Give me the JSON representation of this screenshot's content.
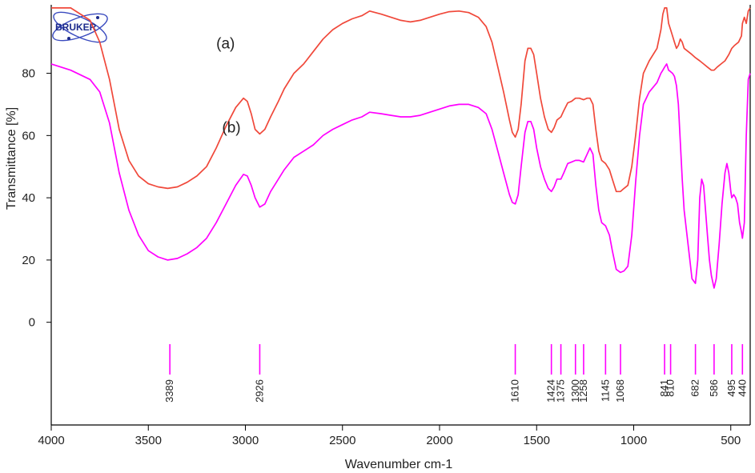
{
  "chart_data": {
    "type": "line",
    "logo": "BRUKER",
    "xlabel": "Wavenumber cm-1",
    "ylabel": "Transmittance [%]",
    "xlim": [
      4000,
      400
    ],
    "x_reversed": true,
    "ylim": [
      -33,
      102
    ],
    "x_ticks": [
      4000,
      3500,
      3000,
      2500,
      2000,
      1500,
      1000,
      500
    ],
    "y_ticks": [
      0,
      20,
      40,
      60,
      80
    ],
    "grid": false,
    "colors": {
      "a": "#f0483a",
      "b": "#ff00ff",
      "peaks": "#ff00ff"
    },
    "series": [
      {
        "name": "(a)",
        "color": "#f0483a",
        "points": [
          [
            4000,
            101
          ],
          [
            3900,
            101
          ],
          [
            3800,
            97
          ],
          [
            3750,
            90
          ],
          [
            3700,
            78
          ],
          [
            3650,
            62
          ],
          [
            3600,
            52
          ],
          [
            3550,
            47
          ],
          [
            3500,
            44.5
          ],
          [
            3450,
            43.5
          ],
          [
            3400,
            43
          ],
          [
            3350,
            43.5
          ],
          [
            3300,
            45
          ],
          [
            3250,
            47
          ],
          [
            3200,
            50
          ],
          [
            3150,
            56
          ],
          [
            3100,
            63
          ],
          [
            3050,
            69
          ],
          [
            3010,
            72
          ],
          [
            2990,
            71
          ],
          [
            2970,
            67
          ],
          [
            2950,
            62
          ],
          [
            2926,
            60.5
          ],
          [
            2900,
            62
          ],
          [
            2870,
            66
          ],
          [
            2830,
            71
          ],
          [
            2800,
            75
          ],
          [
            2750,
            80
          ],
          [
            2700,
            83
          ],
          [
            2650,
            87
          ],
          [
            2600,
            91
          ],
          [
            2550,
            94
          ],
          [
            2500,
            96
          ],
          [
            2450,
            97.5
          ],
          [
            2400,
            98.5
          ],
          [
            2360,
            100
          ],
          [
            2300,
            99
          ],
          [
            2250,
            98
          ],
          [
            2200,
            97
          ],
          [
            2150,
            96.5
          ],
          [
            2100,
            97
          ],
          [
            2050,
            98
          ],
          [
            2000,
            99
          ],
          [
            1950,
            99.8
          ],
          [
            1900,
            100
          ],
          [
            1850,
            99.5
          ],
          [
            1800,
            98
          ],
          [
            1760,
            95
          ],
          [
            1730,
            90
          ],
          [
            1700,
            82
          ],
          [
            1670,
            74
          ],
          [
            1640,
            65
          ],
          [
            1625,
            61
          ],
          [
            1610,
            59.5
          ],
          [
            1595,
            62
          ],
          [
            1580,
            70
          ],
          [
            1560,
            84
          ],
          [
            1545,
            88
          ],
          [
            1530,
            88
          ],
          [
            1515,
            86
          ],
          [
            1500,
            80
          ],
          [
            1480,
            72
          ],
          [
            1460,
            66
          ],
          [
            1440,
            62
          ],
          [
            1424,
            61
          ],
          [
            1410,
            62.5
          ],
          [
            1395,
            65
          ],
          [
            1375,
            66
          ],
          [
            1360,
            68
          ],
          [
            1340,
            70.5
          ],
          [
            1320,
            71
          ],
          [
            1300,
            72
          ],
          [
            1280,
            72
          ],
          [
            1258,
            71.5
          ],
          [
            1240,
            72
          ],
          [
            1225,
            72
          ],
          [
            1210,
            70
          ],
          [
            1195,
            62
          ],
          [
            1180,
            55
          ],
          [
            1165,
            52
          ],
          [
            1145,
            51
          ],
          [
            1125,
            49
          ],
          [
            1110,
            46
          ],
          [
            1090,
            42
          ],
          [
            1068,
            42
          ],
          [
            1050,
            43
          ],
          [
            1030,
            44
          ],
          [
            1010,
            50
          ],
          [
            990,
            60
          ],
          [
            970,
            72
          ],
          [
            950,
            80
          ],
          [
            920,
            84
          ],
          [
            880,
            88
          ],
          [
            860,
            94
          ],
          [
            850,
            99
          ],
          [
            841,
            101
          ],
          [
            830,
            101
          ],
          [
            820,
            96
          ],
          [
            810,
            94
          ],
          [
            800,
            92
          ],
          [
            790,
            90
          ],
          [
            780,
            88
          ],
          [
            770,
            89
          ],
          [
            760,
            91
          ],
          [
            750,
            90
          ],
          [
            740,
            88
          ],
          [
            720,
            87
          ],
          [
            700,
            86
          ],
          [
            682,
            85
          ],
          [
            660,
            84
          ],
          [
            640,
            83
          ],
          [
            620,
            82
          ],
          [
            600,
            81
          ],
          [
            586,
            81
          ],
          [
            570,
            82
          ],
          [
            550,
            83
          ],
          [
            530,
            84
          ],
          [
            510,
            86
          ],
          [
            495,
            88
          ],
          [
            480,
            89
          ],
          [
            460,
            90
          ],
          [
            445,
            92
          ],
          [
            440,
            96
          ],
          [
            430,
            98
          ],
          [
            420,
            96
          ],
          [
            410,
            100
          ],
          [
            400,
            101
          ]
        ]
      },
      {
        "name": "(b)",
        "color": "#ff00ff",
        "points": [
          [
            4000,
            83
          ],
          [
            3900,
            81
          ],
          [
            3800,
            78
          ],
          [
            3750,
            74
          ],
          [
            3700,
            64
          ],
          [
            3650,
            48
          ],
          [
            3600,
            36
          ],
          [
            3550,
            28
          ],
          [
            3500,
            23
          ],
          [
            3450,
            21
          ],
          [
            3400,
            20
          ],
          [
            3350,
            20.5
          ],
          [
            3300,
            22
          ],
          [
            3250,
            24
          ],
          [
            3200,
            27
          ],
          [
            3150,
            32
          ],
          [
            3100,
            38
          ],
          [
            3050,
            44
          ],
          [
            3010,
            47.5
          ],
          [
            2990,
            47
          ],
          [
            2970,
            44
          ],
          [
            2950,
            40
          ],
          [
            2926,
            37
          ],
          [
            2900,
            38
          ],
          [
            2870,
            42
          ],
          [
            2830,
            46
          ],
          [
            2800,
            49
          ],
          [
            2750,
            53
          ],
          [
            2700,
            55
          ],
          [
            2650,
            57
          ],
          [
            2600,
            60
          ],
          [
            2550,
            62
          ],
          [
            2500,
            63.5
          ],
          [
            2450,
            65
          ],
          [
            2400,
            66
          ],
          [
            2360,
            67.5
          ],
          [
            2300,
            67
          ],
          [
            2250,
            66.5
          ],
          [
            2200,
            66
          ],
          [
            2150,
            66
          ],
          [
            2100,
            66.5
          ],
          [
            2050,
            67.5
          ],
          [
            2000,
            68.5
          ],
          [
            1950,
            69.5
          ],
          [
            1900,
            70
          ],
          [
            1850,
            70
          ],
          [
            1800,
            69
          ],
          [
            1760,
            67
          ],
          [
            1730,
            62
          ],
          [
            1700,
            55
          ],
          [
            1670,
            48
          ],
          [
            1640,
            41
          ],
          [
            1625,
            38.5
          ],
          [
            1610,
            38
          ],
          [
            1595,
            41
          ],
          [
            1580,
            50
          ],
          [
            1560,
            61
          ],
          [
            1545,
            64.5
          ],
          [
            1530,
            64.5
          ],
          [
            1515,
            62
          ],
          [
            1500,
            56
          ],
          [
            1480,
            50
          ],
          [
            1460,
            46
          ],
          [
            1440,
            43
          ],
          [
            1424,
            42
          ],
          [
            1410,
            43.5
          ],
          [
            1395,
            46
          ],
          [
            1375,
            46
          ],
          [
            1360,
            48
          ],
          [
            1340,
            51
          ],
          [
            1320,
            51.5
          ],
          [
            1300,
            52
          ],
          [
            1280,
            52
          ],
          [
            1258,
            51.5
          ],
          [
            1240,
            54
          ],
          [
            1225,
            56
          ],
          [
            1210,
            54
          ],
          [
            1195,
            44
          ],
          [
            1180,
            36
          ],
          [
            1165,
            32
          ],
          [
            1145,
            31
          ],
          [
            1125,
            28
          ],
          [
            1110,
            23
          ],
          [
            1090,
            17
          ],
          [
            1068,
            16
          ],
          [
            1050,
            16.5
          ],
          [
            1030,
            18
          ],
          [
            1010,
            28
          ],
          [
            990,
            45
          ],
          [
            970,
            60
          ],
          [
            950,
            70
          ],
          [
            920,
            74
          ],
          [
            880,
            77
          ],
          [
            860,
            80
          ],
          [
            850,
            81
          ],
          [
            841,
            82
          ],
          [
            830,
            83
          ],
          [
            820,
            81
          ],
          [
            810,
            80.5
          ],
          [
            800,
            80
          ],
          [
            790,
            79
          ],
          [
            780,
            76
          ],
          [
            770,
            70
          ],
          [
            760,
            58
          ],
          [
            750,
            46
          ],
          [
            740,
            36
          ],
          [
            720,
            25
          ],
          [
            700,
            14
          ],
          [
            682,
            12.5
          ],
          [
            670,
            20
          ],
          [
            660,
            40
          ],
          [
            650,
            46
          ],
          [
            640,
            44
          ],
          [
            630,
            36
          ],
          [
            620,
            28
          ],
          [
            610,
            20
          ],
          [
            600,
            15
          ],
          [
            586,
            11
          ],
          [
            575,
            14
          ],
          [
            560,
            25
          ],
          [
            545,
            38
          ],
          [
            530,
            48
          ],
          [
            520,
            51
          ],
          [
            510,
            48
          ],
          [
            500,
            42
          ],
          [
            495,
            40
          ],
          [
            485,
            41
          ],
          [
            475,
            40
          ],
          [
            465,
            38
          ],
          [
            455,
            32
          ],
          [
            445,
            29
          ],
          [
            440,
            27
          ],
          [
            430,
            32
          ],
          [
            420,
            60
          ],
          [
            410,
            78
          ],
          [
            400,
            80
          ]
        ]
      }
    ],
    "curve_labels": [
      {
        "text": "(a)",
        "x": 3150,
        "y": 88
      },
      {
        "text": "(b)",
        "x": 3120,
        "y": 61
      }
    ],
    "peaks": [
      3389,
      2926,
      1610,
      1424,
      1375,
      1300,
      1258,
      1145,
      1068,
      841,
      810,
      682,
      586,
      495,
      440
    ]
  }
}
